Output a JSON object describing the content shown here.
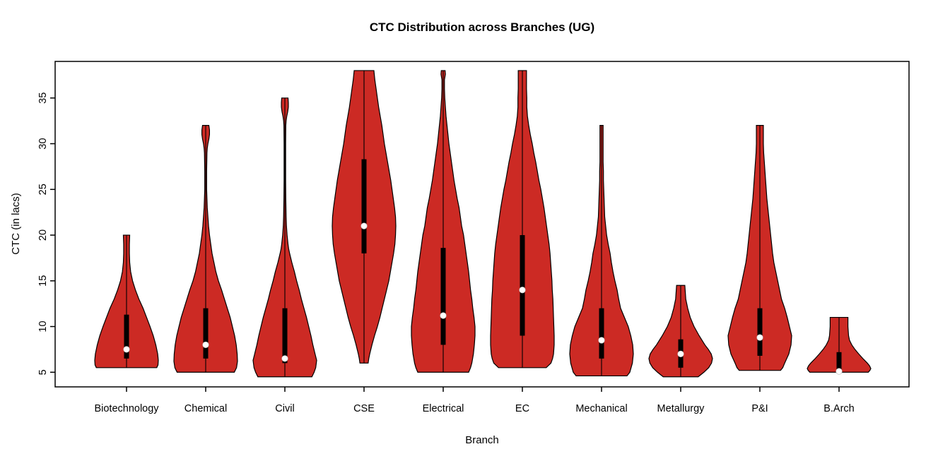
{
  "window": {
    "background": "#ffffff"
  },
  "colors": {
    "violin_fill": "#CC2A24",
    "violin_stroke": "#000000",
    "box_fill": "#000000",
    "median_dot": "#FFFFFF",
    "axis": "#000000",
    "text": "#000000"
  },
  "chart_data": {
    "type": "violin",
    "title": "CTC Distribution across Branches (UG)",
    "xlabel": "Branch",
    "ylabel": "CTC (in lacs)",
    "ylim": [
      3.4,
      39
    ],
    "yticks": [
      5,
      10,
      15,
      20,
      25,
      30,
      35
    ],
    "grid": false,
    "legend": "none",
    "categories": [
      "Biotechnology",
      "Chemical",
      "Civil",
      "CSE",
      "Electrical",
      "EC",
      "Mechanical",
      "Metallurgy",
      "P&I",
      "B.Arch"
    ],
    "series": [
      {
        "name": "Biotechnology",
        "stats": {
          "min": 5.5,
          "q1": 6.5,
          "median": 7.5,
          "q3": 11.3,
          "max": 20
        },
        "profile": [
          [
            20,
            0.1
          ],
          [
            19,
            0.09
          ],
          [
            18,
            0.09
          ],
          [
            17,
            0.1
          ],
          [
            16,
            0.13
          ],
          [
            15,
            0.19
          ],
          [
            14,
            0.28
          ],
          [
            13,
            0.39
          ],
          [
            12,
            0.52
          ],
          [
            11,
            0.63
          ],
          [
            10,
            0.74
          ],
          [
            9,
            0.84
          ],
          [
            8,
            0.92
          ],
          [
            7,
            0.98
          ],
          [
            6.3,
            1.0
          ],
          [
            5.8,
            0.99
          ],
          [
            5.5,
            0.95
          ]
        ]
      },
      {
        "name": "Chemical",
        "stats": {
          "min": 5,
          "q1": 6.5,
          "median": 8,
          "q3": 12,
          "max": 32
        },
        "profile": [
          [
            32,
            0.1
          ],
          [
            31.5,
            0.12
          ],
          [
            31,
            0.12
          ],
          [
            30.5,
            0.1
          ],
          [
            30,
            0.07
          ],
          [
            29.5,
            0.05
          ],
          [
            29,
            0.04
          ],
          [
            27,
            0.03
          ],
          [
            25,
            0.03
          ],
          [
            24,
            0.04
          ],
          [
            23,
            0.05
          ],
          [
            22,
            0.07
          ],
          [
            21,
            0.09
          ],
          [
            20,
            0.12
          ],
          [
            19,
            0.16
          ],
          [
            18,
            0.2
          ],
          [
            17,
            0.26
          ],
          [
            16,
            0.32
          ],
          [
            15,
            0.4
          ],
          [
            14,
            0.5
          ],
          [
            13,
            0.59
          ],
          [
            12,
            0.68
          ],
          [
            11,
            0.77
          ],
          [
            10,
            0.84
          ],
          [
            9,
            0.91
          ],
          [
            8,
            0.96
          ],
          [
            7,
            0.99
          ],
          [
            6.2,
            1.0
          ],
          [
            5.5,
            0.97
          ],
          [
            5,
            0.9
          ]
        ]
      },
      {
        "name": "Civil",
        "stats": {
          "min": 4.5,
          "q1": 6,
          "median": 6.5,
          "q3": 12,
          "max": 35
        },
        "profile": [
          [
            35,
            0.1
          ],
          [
            34.5,
            0.11
          ],
          [
            34,
            0.11
          ],
          [
            33.5,
            0.09
          ],
          [
            33,
            0.06
          ],
          [
            32.5,
            0.04
          ],
          [
            32,
            0.03
          ],
          [
            30,
            0.025
          ],
          [
            28,
            0.025
          ],
          [
            26,
            0.025
          ],
          [
            24,
            0.03
          ],
          [
            22,
            0.04
          ],
          [
            21,
            0.05
          ],
          [
            20,
            0.07
          ],
          [
            19,
            0.1
          ],
          [
            18.5,
            0.12
          ],
          [
            18,
            0.15
          ],
          [
            17,
            0.22
          ],
          [
            16,
            0.3
          ],
          [
            15,
            0.37
          ],
          [
            14,
            0.45
          ],
          [
            13,
            0.52
          ],
          [
            12,
            0.6
          ],
          [
            11,
            0.68
          ],
          [
            10,
            0.75
          ],
          [
            9,
            0.82
          ],
          [
            8,
            0.88
          ],
          [
            7,
            0.95
          ],
          [
            6.3,
            1.0
          ],
          [
            5.5,
            0.97
          ],
          [
            5,
            0.92
          ],
          [
            4.5,
            0.85
          ]
        ]
      },
      {
        "name": "CSE",
        "stats": {
          "min": 6,
          "q1": 18,
          "median": 21,
          "q3": 28.3,
          "max": 38
        },
        "profile": [
          [
            38,
            0.31
          ],
          [
            37,
            0.34
          ],
          [
            36,
            0.38
          ],
          [
            35,
            0.42
          ],
          [
            34,
            0.46
          ],
          [
            33,
            0.51
          ],
          [
            32,
            0.56
          ],
          [
            31,
            0.6
          ],
          [
            30,
            0.64
          ],
          [
            29,
            0.69
          ],
          [
            28,
            0.74
          ],
          [
            27,
            0.79
          ],
          [
            26,
            0.84
          ],
          [
            25,
            0.88
          ],
          [
            24,
            0.92
          ],
          [
            23,
            0.96
          ],
          [
            22,
            0.99
          ],
          [
            21,
            1.0
          ],
          [
            20,
            0.99
          ],
          [
            19,
            0.97
          ],
          [
            18,
            0.93
          ],
          [
            17,
            0.88
          ],
          [
            16,
            0.83
          ],
          [
            15,
            0.78
          ],
          [
            14,
            0.71
          ],
          [
            13,
            0.64
          ],
          [
            12,
            0.57
          ],
          [
            11,
            0.5
          ],
          [
            10,
            0.42
          ],
          [
            9,
            0.33
          ],
          [
            8,
            0.25
          ],
          [
            7,
            0.18
          ],
          [
            6.5,
            0.15
          ],
          [
            6,
            0.13
          ]
        ]
      },
      {
        "name": "Electrical",
        "stats": {
          "min": 5,
          "q1": 8,
          "median": 11.2,
          "q3": 18.6,
          "max": 38
        },
        "profile": [
          [
            38,
            0.06
          ],
          [
            37.6,
            0.07
          ],
          [
            37.2,
            0.05
          ],
          [
            37,
            0.04
          ],
          [
            36,
            0.04
          ],
          [
            35,
            0.05
          ],
          [
            34,
            0.07
          ],
          [
            33,
            0.09
          ],
          [
            32,
            0.12
          ],
          [
            31,
            0.15
          ],
          [
            30,
            0.18
          ],
          [
            29,
            0.22
          ],
          [
            28,
            0.26
          ],
          [
            27,
            0.3
          ],
          [
            26,
            0.34
          ],
          [
            25,
            0.39
          ],
          [
            24,
            0.44
          ],
          [
            23,
            0.5
          ],
          [
            22,
            0.54
          ],
          [
            21,
            0.58
          ],
          [
            20,
            0.64
          ],
          [
            19,
            0.68
          ],
          [
            18,
            0.72
          ],
          [
            17,
            0.76
          ],
          [
            16,
            0.8
          ],
          [
            15,
            0.83
          ],
          [
            14,
            0.86
          ],
          [
            13,
            0.9
          ],
          [
            12,
            0.93
          ],
          [
            11,
            0.97
          ],
          [
            10,
            1.0
          ],
          [
            9,
            1.0
          ],
          [
            8,
            0.98
          ],
          [
            7,
            0.95
          ],
          [
            6,
            0.9
          ],
          [
            5.5,
            0.86
          ],
          [
            5,
            0.8
          ]
        ]
      },
      {
        "name": "EC",
        "stats": {
          "min": 5.5,
          "q1": 9,
          "median": 14,
          "q3": 20,
          "max": 38
        },
        "profile": [
          [
            38,
            0.13
          ],
          [
            37,
            0.13
          ],
          [
            36,
            0.13
          ],
          [
            35,
            0.14
          ],
          [
            34,
            0.14
          ],
          [
            33,
            0.16
          ],
          [
            32,
            0.2
          ],
          [
            31,
            0.25
          ],
          [
            30,
            0.31
          ],
          [
            29,
            0.36
          ],
          [
            28,
            0.42
          ],
          [
            27,
            0.47
          ],
          [
            26,
            0.52
          ],
          [
            25,
            0.58
          ],
          [
            24,
            0.63
          ],
          [
            23,
            0.68
          ],
          [
            22,
            0.72
          ],
          [
            21,
            0.76
          ],
          [
            20,
            0.8
          ],
          [
            19,
            0.84
          ],
          [
            18,
            0.87
          ],
          [
            17,
            0.89
          ],
          [
            16,
            0.91
          ],
          [
            15,
            0.93
          ],
          [
            14,
            0.94
          ],
          [
            13,
            0.96
          ],
          [
            12,
            0.97
          ],
          [
            11,
            0.98
          ],
          [
            10,
            0.99
          ],
          [
            9,
            1.0
          ],
          [
            8,
            1.0
          ],
          [
            7,
            0.98
          ],
          [
            6.5,
            0.95
          ],
          [
            6,
            0.9
          ],
          [
            5.5,
            0.75
          ]
        ]
      },
      {
        "name": "Mechanical",
        "stats": {
          "min": 4.6,
          "q1": 6.5,
          "median": 8.5,
          "q3": 12,
          "max": 32
        },
        "profile": [
          [
            32,
            0.05
          ],
          [
            31,
            0.05
          ],
          [
            30,
            0.05
          ],
          [
            29,
            0.05
          ],
          [
            28,
            0.05
          ],
          [
            27,
            0.06
          ],
          [
            26,
            0.06
          ],
          [
            25,
            0.07
          ],
          [
            24,
            0.08
          ],
          [
            23,
            0.09
          ],
          [
            22,
            0.1
          ],
          [
            21,
            0.13
          ],
          [
            20,
            0.16
          ],
          [
            19,
            0.21
          ],
          [
            18,
            0.27
          ],
          [
            17,
            0.31
          ],
          [
            16,
            0.36
          ],
          [
            15,
            0.42
          ],
          [
            14,
            0.49
          ],
          [
            13,
            0.54
          ],
          [
            12,
            0.6
          ],
          [
            11,
            0.72
          ],
          [
            10,
            0.84
          ],
          [
            9,
            0.92
          ],
          [
            8,
            0.98
          ],
          [
            7,
            1.0
          ],
          [
            6,
            0.97
          ],
          [
            5,
            0.89
          ],
          [
            4.6,
            0.8
          ]
        ]
      },
      {
        "name": "Metallurgy",
        "stats": {
          "min": 4.5,
          "q1": 5.5,
          "median": 7,
          "q3": 8.6,
          "max": 14.5
        },
        "profile": [
          [
            14.5,
            0.13
          ],
          [
            14,
            0.14
          ],
          [
            13.5,
            0.15
          ],
          [
            13,
            0.16
          ],
          [
            12.5,
            0.19
          ],
          [
            12,
            0.22
          ],
          [
            11.5,
            0.26
          ],
          [
            11,
            0.3
          ],
          [
            10.5,
            0.36
          ],
          [
            10,
            0.42
          ],
          [
            9.5,
            0.5
          ],
          [
            9,
            0.58
          ],
          [
            8.5,
            0.67
          ],
          [
            8,
            0.76
          ],
          [
            7.5,
            0.87
          ],
          [
            7,
            0.96
          ],
          [
            6.5,
            1.0
          ],
          [
            6,
            0.97
          ],
          [
            5.5,
            0.88
          ],
          [
            5,
            0.73
          ],
          [
            4.5,
            0.55
          ]
        ]
      },
      {
        "name": "P&I",
        "stats": {
          "min": 5.2,
          "q1": 6.8,
          "median": 8.8,
          "q3": 12,
          "max": 32
        },
        "profile": [
          [
            32,
            0.11
          ],
          [
            31,
            0.11
          ],
          [
            30,
            0.11
          ],
          [
            29,
            0.12
          ],
          [
            28,
            0.14
          ],
          [
            27,
            0.16
          ],
          [
            26,
            0.18
          ],
          [
            25,
            0.2
          ],
          [
            24,
            0.22
          ],
          [
            23,
            0.25
          ],
          [
            22,
            0.28
          ],
          [
            21,
            0.31
          ],
          [
            20,
            0.34
          ],
          [
            19,
            0.37
          ],
          [
            18,
            0.4
          ],
          [
            17,
            0.44
          ],
          [
            16,
            0.5
          ],
          [
            15,
            0.56
          ],
          [
            14,
            0.62
          ],
          [
            13,
            0.68
          ],
          [
            12,
            0.78
          ],
          [
            11,
            0.86
          ],
          [
            10,
            0.93
          ],
          [
            9,
            1.0
          ],
          [
            8,
            0.98
          ],
          [
            7,
            0.91
          ],
          [
            6,
            0.78
          ],
          [
            5.5,
            0.72
          ],
          [
            5.2,
            0.65
          ]
        ]
      },
      {
        "name": "B.Arch",
        "stats": {
          "min": 5,
          "q1": 5.3,
          "median": 5.1,
          "q3": 7.2,
          "max": 11
        },
        "profile": [
          [
            11,
            0.28
          ],
          [
            10.5,
            0.28
          ],
          [
            10,
            0.28
          ],
          [
            9.5,
            0.29
          ],
          [
            9,
            0.3
          ],
          [
            8.5,
            0.33
          ],
          [
            8,
            0.4
          ],
          [
            7.5,
            0.5
          ],
          [
            7,
            0.62
          ],
          [
            6.5,
            0.75
          ],
          [
            6,
            0.89
          ],
          [
            5.7,
            0.96
          ],
          [
            5.4,
            1.0
          ],
          [
            5.2,
            0.97
          ],
          [
            5,
            0.92
          ]
        ]
      }
    ]
  }
}
